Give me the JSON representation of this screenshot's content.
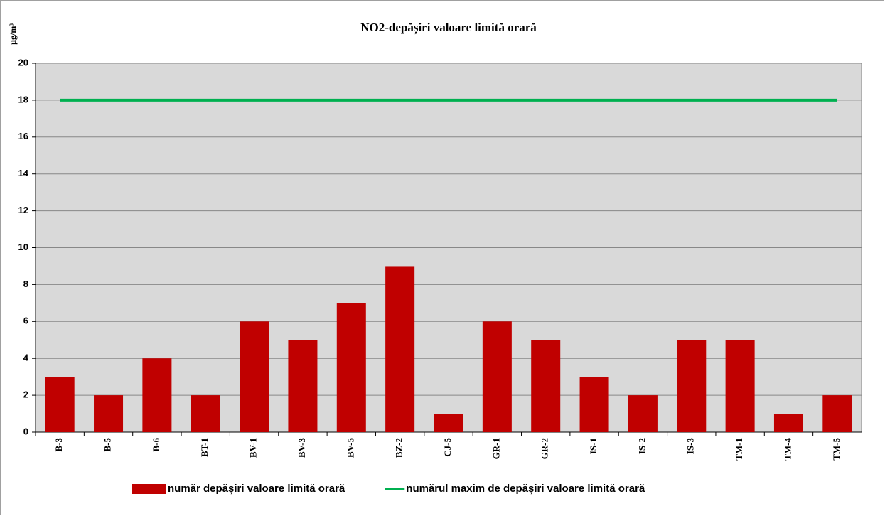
{
  "chart_data": {
    "type": "bar",
    "title": "NO2-depășiri  valoare limită  orară",
    "y_label": "µg/m³",
    "categories": [
      "B-3",
      "B-5",
      "B-6",
      "BT-1",
      "BV-1",
      "BV-3",
      "BV-5",
      "BZ-2",
      "CJ-5",
      "GR-1",
      "GR-2",
      "IS-1",
      "IS-2",
      "IS-3",
      "TM-1",
      "TM-4",
      "TM-5"
    ],
    "series": [
      {
        "name": "număr depășiri valoare limită orară",
        "type": "bar",
        "color": "#c00000",
        "values": [
          3,
          2,
          4,
          2,
          6,
          5,
          7,
          9,
          1,
          6,
          5,
          3,
          2,
          5,
          5,
          1,
          2
        ]
      },
      {
        "name": "numărul maxim de depășiri valoare limită orară",
        "type": "line",
        "color": "#00b050",
        "values": [
          18,
          18,
          18,
          18,
          18,
          18,
          18,
          18,
          18,
          18,
          18,
          18,
          18,
          18,
          18,
          18,
          18
        ]
      }
    ],
    "ylim": [
      0,
      20
    ],
    "yticks": [
      0,
      2,
      4,
      6,
      8,
      10,
      12,
      14,
      16,
      18,
      20
    ],
    "grid": true,
    "legend": "bottom"
  }
}
